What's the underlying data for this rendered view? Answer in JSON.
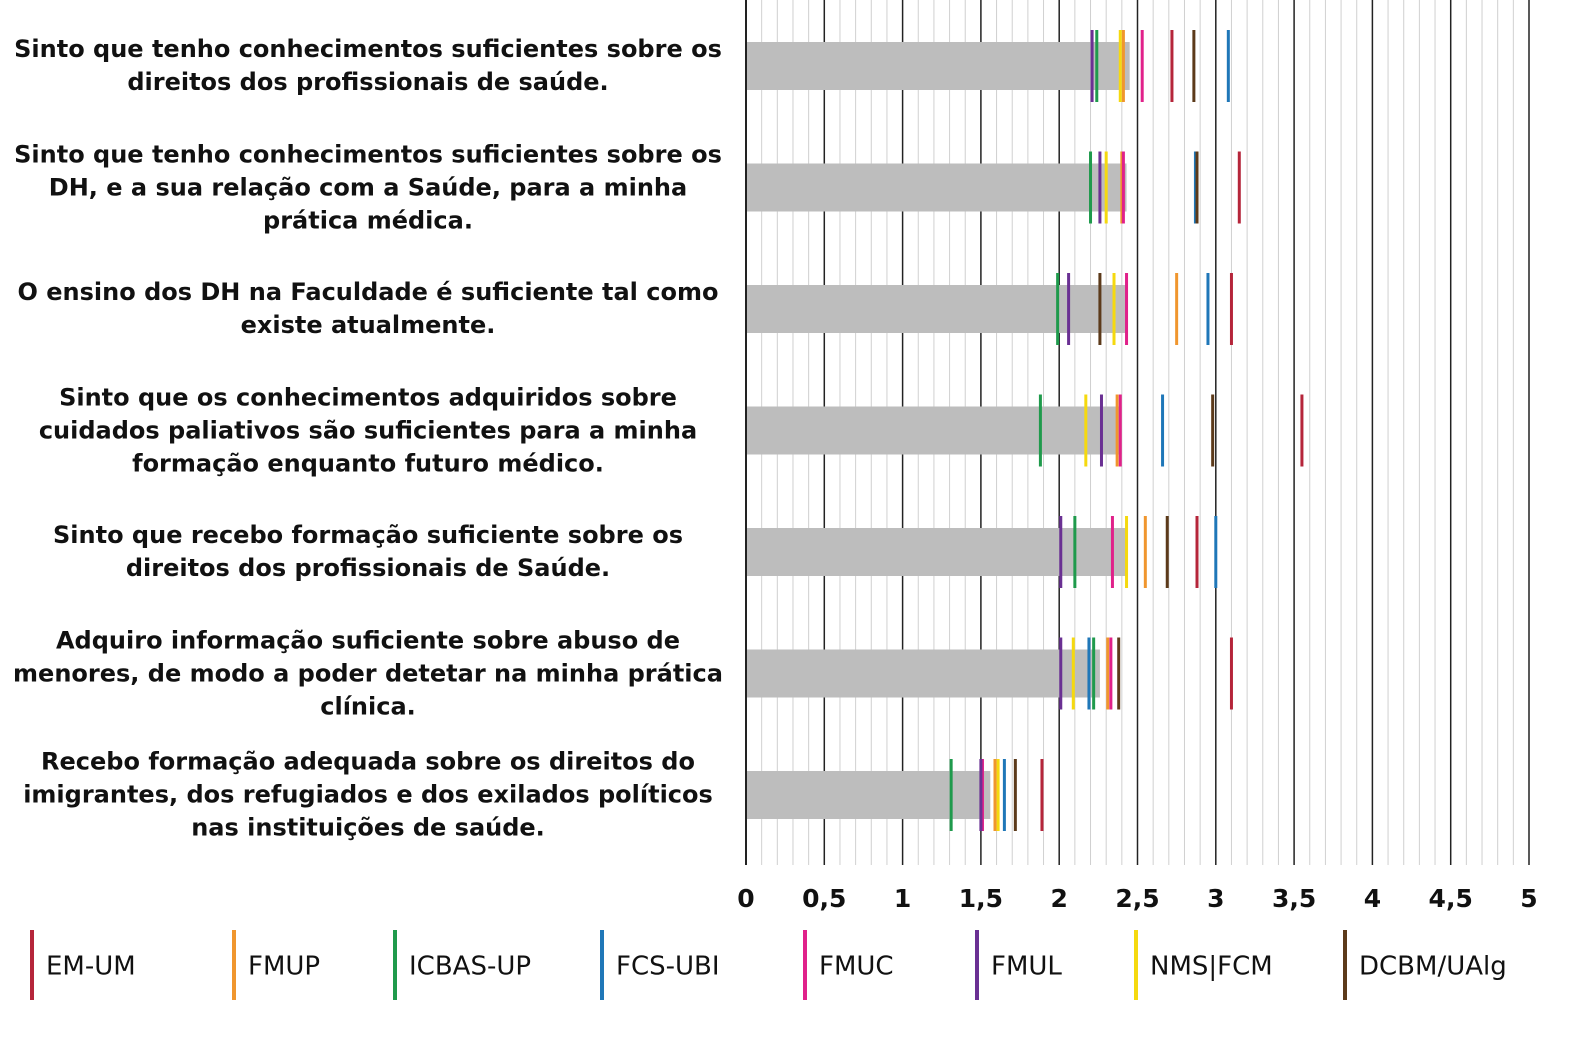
{
  "chart_data": {
    "type": "bar",
    "orientation": "horizontal",
    "categories": [
      "Sinto que tenho conhecimentos suficientes sobre os direitos dos profissionais de saúde.",
      "Sinto que tenho conhecimentos suficientes sobre os DH, e a sua relação com a Saúde, para a minha prática médica.",
      "O ensino dos DH na Faculdade é suficiente tal como existe atualmente.",
      "Sinto que os conhecimentos adquiridos sobre cuidados paliativos são suficientes para a minha formação enquanto futuro médico.",
      "Sinto que recebo formação suficiente sobre os direitos dos profissionais de Saúde.",
      "Adquiro informação suficiente sobre abuso de menores, de modo a poder detetar na minha prática clínica.",
      "Recebo formação adequada sobre os direitos do imigrantes, dos refugiados e dos exilados políticos nas instituições de saúde."
    ],
    "values": [
      2.45,
      2.43,
      2.43,
      2.4,
      2.43,
      2.26,
      1.56
    ],
    "color": "#bdbdbd",
    "series": [
      {
        "name": "EM-UM",
        "color": "#b5253a",
        "values": [
          2.72,
          3.15,
          3.1,
          3.55,
          2.88,
          3.1,
          1.89
        ]
      },
      {
        "name": "FMUP",
        "color": "#f0962e",
        "values": [
          2.41,
          2.4,
          2.75,
          2.37,
          2.55,
          2.31,
          1.59
        ]
      },
      {
        "name": "ICBAS-UP",
        "color": "#1f9a4c",
        "values": [
          2.24,
          2.2,
          1.99,
          1.88,
          2.1,
          2.22,
          1.31
        ]
      },
      {
        "name": "FCS-UBI",
        "color": "#1f77b8",
        "values": [
          3.08,
          2.87,
          2.95,
          2.66,
          3.0,
          2.19,
          1.65
        ]
      },
      {
        "name": "FMUC",
        "color": "#e0218a",
        "values": [
          2.53,
          2.41,
          2.43,
          2.39,
          2.34,
          2.33,
          1.51
        ]
      },
      {
        "name": "FMUL",
        "color": "#6a3093",
        "values": [
          2.21,
          2.26,
          2.06,
          2.27,
          2.01,
          2.01,
          1.5
        ]
      },
      {
        "name": "NMS|FCM",
        "color": "#f5d90f",
        "values": [
          2.39,
          2.3,
          2.35,
          2.17,
          2.43,
          2.09,
          1.61
        ]
      },
      {
        "name": "DCBM/UAlg",
        "color": "#5c3a1a",
        "values": [
          2.86,
          2.88,
          2.26,
          2.98,
          2.69,
          2.38,
          1.72
        ]
      }
    ],
    "xlim": [
      0,
      5
    ],
    "xticks": [
      0,
      {
        "value": 0.5,
        "label": "0,5"
      },
      1,
      {
        "value": 1.5,
        "label": "1,5"
      },
      2,
      {
        "value": 2.5,
        "label": "2,5"
      },
      3,
      {
        "value": 3.5,
        "label": "3,5"
      },
      4,
      {
        "value": 4.5,
        "label": "4,5"
      },
      5
    ],
    "grid": true,
    "legend": "bottom"
  }
}
